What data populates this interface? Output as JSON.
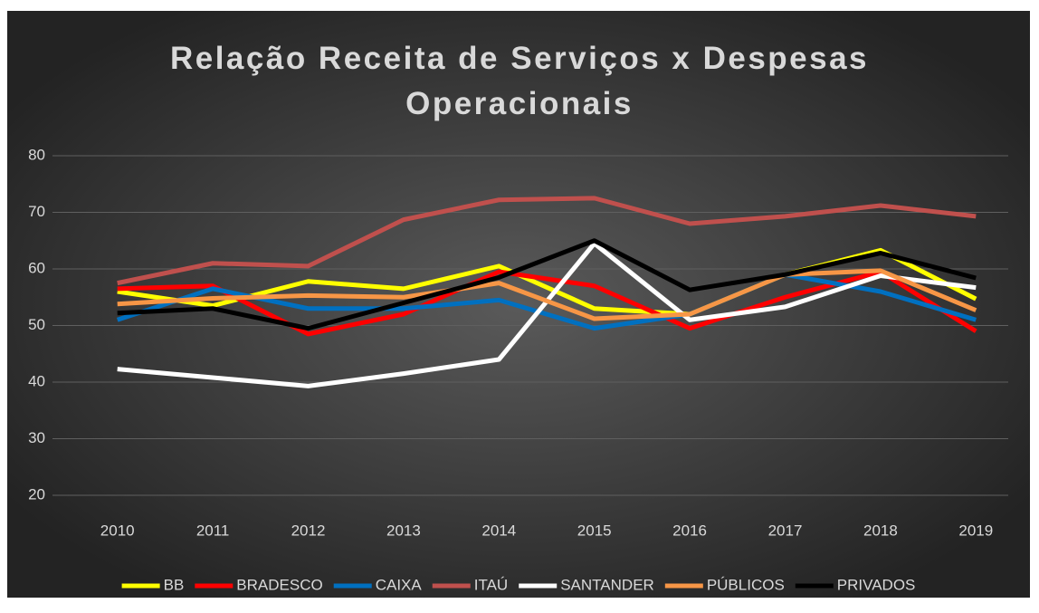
{
  "chart_data": {
    "type": "line",
    "title": "Relação Receita de Serviços x Despesas Operacionais",
    "categories": [
      "2010",
      "2011",
      "2012",
      "2013",
      "2014",
      "2015",
      "2016",
      "2017",
      "2018",
      "2019"
    ],
    "series": [
      {
        "name": "BB",
        "color": "#ffff00",
        "values": [
          56,
          53.5,
          57.8,
          56.5,
          60.5,
          53,
          52,
          59,
          63.3,
          54.7
        ]
      },
      {
        "name": "BRADESCO",
        "color": "#ff0000",
        "values": [
          56.5,
          57,
          48.5,
          52,
          59.5,
          57,
          49.5,
          55,
          59.5,
          49
        ]
      },
      {
        "name": "CAIXA",
        "color": "#0070c0",
        "values": [
          51,
          56.5,
          53,
          53,
          54.5,
          49.5,
          52,
          59,
          56,
          51
        ]
      },
      {
        "name": "ITAÚ",
        "color": "#c0504d",
        "values": [
          57.5,
          61,
          60.5,
          68.7,
          72.2,
          72.5,
          68,
          69.3,
          71.2,
          69.3
        ]
      },
      {
        "name": "SANTANDER",
        "color": "#ffffff",
        "values": [
          42.3,
          40.8,
          39.3,
          41.5,
          44,
          64.5,
          51,
          53.3,
          58.8,
          56.7
        ]
      },
      {
        "name": "PÚBLICOS",
        "color": "#f79646",
        "values": [
          53.8,
          54.8,
          55.3,
          55,
          57.5,
          51.2,
          52,
          59,
          59.7,
          52.7
        ]
      },
      {
        "name": "PRIVADOS",
        "color": "#000000",
        "values": [
          52.2,
          53,
          49.5,
          54,
          58.5,
          65,
          56.3,
          59,
          62.8,
          58.4
        ]
      }
    ],
    "ylim": [
      20,
      80
    ],
    "yticks": [
      20,
      30,
      40,
      50,
      60,
      70,
      80
    ],
    "grid": true,
    "legend": "bottom"
  }
}
